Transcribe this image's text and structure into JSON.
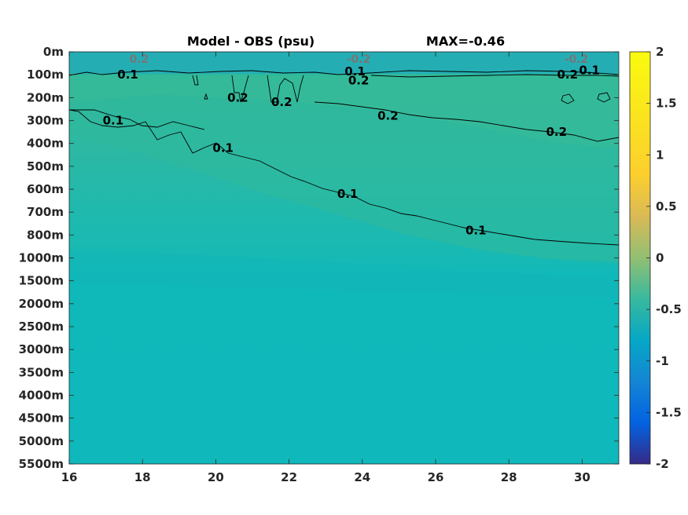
{
  "chart_data": {
    "type": "heatmap",
    "title": "Model - OBS (psu)",
    "max_label": "MAX=-0.46",
    "xlabel": "",
    "ylabel": "",
    "x_ticks": [
      "16",
      "18",
      "20",
      "22",
      "24",
      "26",
      "28",
      "30"
    ],
    "x_range": [
      16,
      31
    ],
    "y_ticks": [
      "0m",
      "100m",
      "200m",
      "300m",
      "400m",
      "500m",
      "600m",
      "700m",
      "800m",
      "1000m",
      "1500m",
      "2000m",
      "2500m",
      "3000m",
      "3500m",
      "4000m",
      "4500m",
      "5000m",
      "5500m"
    ],
    "colorbar": {
      "ticks": [
        "2",
        "1.5",
        "1",
        "0.5",
        "0",
        "-0.5",
        "-1",
        "-1.5",
        "-2"
      ],
      "range": [
        -2,
        2
      ],
      "colormap": "parula"
    },
    "contour_labels": [
      {
        "text": "0.1",
        "x": 17.6,
        "depth_index": 1.0
      },
      {
        "text": "0.1",
        "x": 23.8,
        "depth_index": 0.85
      },
      {
        "text": "0.1",
        "x": 30.2,
        "depth_index": 0.8
      },
      {
        "text": "0.2",
        "x": 23.9,
        "depth_index": 1.25
      },
      {
        "text": "0.2",
        "x": 29.6,
        "depth_index": 1.0
      },
      {
        "text": "0.2",
        "x": 20.6,
        "depth_index": 2.0
      },
      {
        "text": "0.2",
        "x": 21.8,
        "depth_index": 2.2
      },
      {
        "text": "0.2",
        "x": 24.7,
        "depth_index": 2.8
      },
      {
        "text": "0.2",
        "x": 29.3,
        "depth_index": 3.5
      },
      {
        "text": "0.1",
        "x": 17.2,
        "depth_index": 3.0
      },
      {
        "text": "0.1",
        "x": 20.2,
        "depth_index": 4.2
      },
      {
        "text": "0.1",
        "x": 23.6,
        "depth_index": 6.2
      },
      {
        "text": "0.1",
        "x": 27.1,
        "depth_index": 7.8
      }
    ],
    "surface_negative_labels": [
      "0.2",
      "-0.2",
      "-0.2"
    ],
    "grid": false
  }
}
